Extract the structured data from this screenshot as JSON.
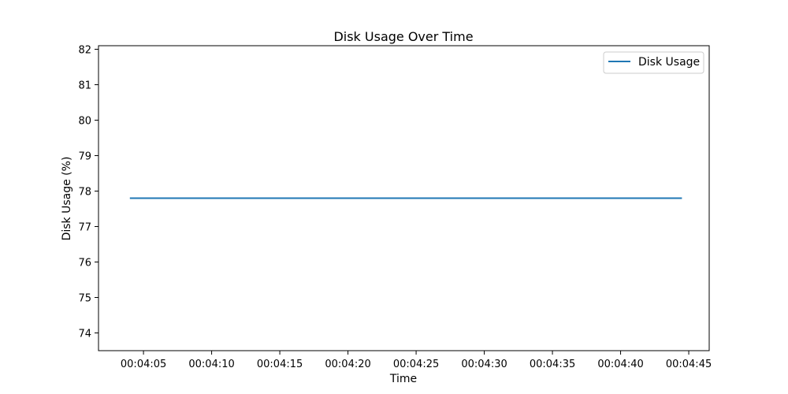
{
  "chart_data": {
    "type": "line",
    "title": "Disk Usage Over Time",
    "xlabel": "Time",
    "ylabel": "Disk Usage (%)",
    "x_ticks": [
      "00:04:05",
      "00:04:10",
      "00:04:15",
      "00:04:20",
      "00:04:25",
      "00:04:30",
      "00:04:35",
      "00:04:40",
      "00:04:45"
    ],
    "y_ticks": [
      "74",
      "75",
      "76",
      "77",
      "78",
      "79",
      "80",
      "81",
      "82"
    ],
    "xlim": [
      "00:04:01.7",
      "00:04:46.5"
    ],
    "ylim": [
      73.5,
      82.1
    ],
    "grid": false,
    "legend_position": "top-right",
    "series": [
      {
        "name": "Disk Usage",
        "color": "#1f77b4",
        "x": [
          "00:04:04",
          "00:04:09",
          "00:04:14",
          "00:04:19",
          "00:04:24",
          "00:04:29",
          "00:04:34",
          "00:04:39",
          "00:04:44.5"
        ],
        "values": [
          77.8,
          77.8,
          77.8,
          77.8,
          77.8,
          77.8,
          77.8,
          77.8,
          77.8
        ]
      }
    ]
  }
}
